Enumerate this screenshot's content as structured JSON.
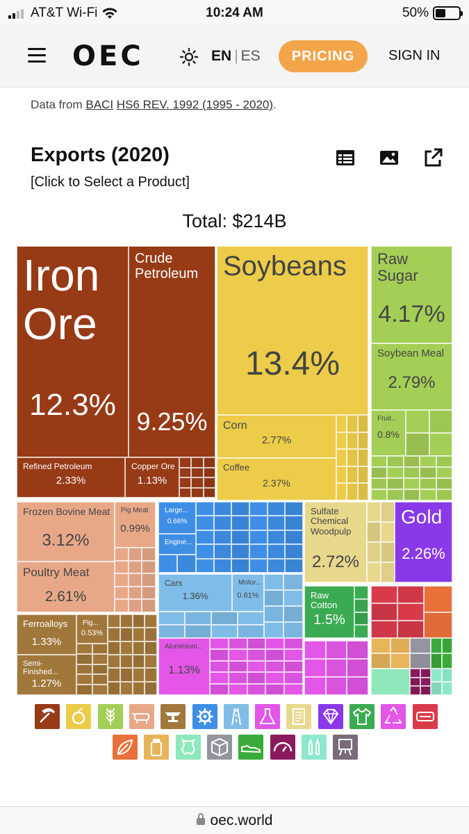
{
  "status_bar": {
    "carrier": "AT&T Wi-Fi",
    "time": "10:24 AM",
    "battery": "50%"
  },
  "navbar": {
    "logo": "OEC",
    "lang_en": "EN",
    "lang_sep": "|",
    "lang_es": "ES",
    "pricing": "PRICING",
    "sign_in": "SIGN IN"
  },
  "source": {
    "prefix": "Data from",
    "dataset": "BACI",
    "revision": "HS6 REV. 1992 (1995 - 2020)",
    "suffix": "."
  },
  "header": {
    "title": "Exports (2020)",
    "subtitle": "[Click to Select a Product]",
    "total": "Total: $214B",
    "tools": [
      "table-icon",
      "image-icon",
      "share-icon"
    ]
  },
  "chart_data": {
    "type": "treemap",
    "total": "$214B",
    "colors": {
      "minerals": "#973a16",
      "vegetables": "#eccc49",
      "foodstuffs": "#a4cf56",
      "animal": "#e8a888",
      "metals": "#a1783b",
      "machines": "#3e8ee6",
      "transport": "#7fbde8",
      "chemicals": "#e356e8",
      "paper": "#e8d88c",
      "precious": "#8a39e8",
      "textiles": "#3aab52"
    },
    "labeled_products": [
      {
        "name": "Iron Ore",
        "share": "12.3%"
      },
      {
        "name": "Crude Petroleum",
        "share": "9.25%"
      },
      {
        "name": "Refined Petroleum",
        "share": "2.33%"
      },
      {
        "name": "Copper Ore",
        "share": "1.13%"
      },
      {
        "name": "Soybeans",
        "share": "13.4%"
      },
      {
        "name": "Corn",
        "share": "2.77%"
      },
      {
        "name": "Coffee",
        "share": "2.37%"
      },
      {
        "name": "Raw Sugar",
        "share": "4.17%"
      },
      {
        "name": "Soybean Meal",
        "share": "2.79%"
      },
      {
        "name": "Fruit...",
        "share": "0.8%"
      },
      {
        "name": "Frozen Bovine Meat",
        "share": "3.12%"
      },
      {
        "name": "Pig Meat",
        "share": "0.99%"
      },
      {
        "name": "Poultry Meat",
        "share": "2.61%"
      },
      {
        "name": "Large...",
        "share": "0.66%"
      },
      {
        "name": "Engine...",
        "share": ""
      },
      {
        "name": "Cars",
        "share": "1.36%"
      },
      {
        "name": "Motor...",
        "share": "0.61%"
      },
      {
        "name": "Aluminium...",
        "share": "1.13%"
      },
      {
        "name": "Sulfate Chemical Woodpulp",
        "share": "2.72%"
      },
      {
        "name": "Gold",
        "share": "2.26%"
      },
      {
        "name": "Raw Cotton",
        "share": "1.5%"
      },
      {
        "name": "Ferroalloys",
        "share": "1.33%"
      },
      {
        "name": "Pig...",
        "share": "0.53%"
      },
      {
        "name": "Semi-Finished...",
        "share": "1.27%"
      }
    ]
  },
  "categories": [
    {
      "icon": "mining-pick-icon",
      "color": "#973a16"
    },
    {
      "icon": "fruit-icon",
      "color": "#eccc49"
    },
    {
      "icon": "grain-icon",
      "color": "#a4cf56"
    },
    {
      "icon": "animal-icon",
      "color": "#e8a888"
    },
    {
      "icon": "anvil-icon",
      "color": "#a1783b"
    },
    {
      "icon": "gear-icon",
      "color": "#3e8ee6"
    },
    {
      "icon": "road-icon",
      "color": "#7fbde8"
    },
    {
      "icon": "flask-icon",
      "color": "#e356e8"
    },
    {
      "icon": "scroll-icon",
      "color": "#e8d88c"
    },
    {
      "icon": "diamond-icon",
      "color": "#8a39e8"
    },
    {
      "icon": "shirt-icon",
      "color": "#3aab52"
    },
    {
      "icon": "recycle-icon",
      "color": "#e356e8"
    },
    {
      "icon": "film-icon",
      "color": "#d93a4a"
    },
    {
      "icon": "leaf-icon",
      "color": "#e8713a"
    },
    {
      "icon": "bottle-icon",
      "color": "#e8b45a"
    },
    {
      "icon": "hide-icon",
      "color": "#8ee8bb"
    },
    {
      "icon": "box-icon",
      "color": "#9494a0"
    },
    {
      "icon": "shoe-icon",
      "color": "#3aab3a"
    },
    {
      "icon": "gauge-icon",
      "color": "#8a1a5e"
    },
    {
      "icon": "ammunition-icon",
      "color": "#8ee8cc"
    },
    {
      "icon": "easel-icon",
      "color": "#7a6a7a"
    }
  ],
  "browser": {
    "url": "oec.world"
  }
}
